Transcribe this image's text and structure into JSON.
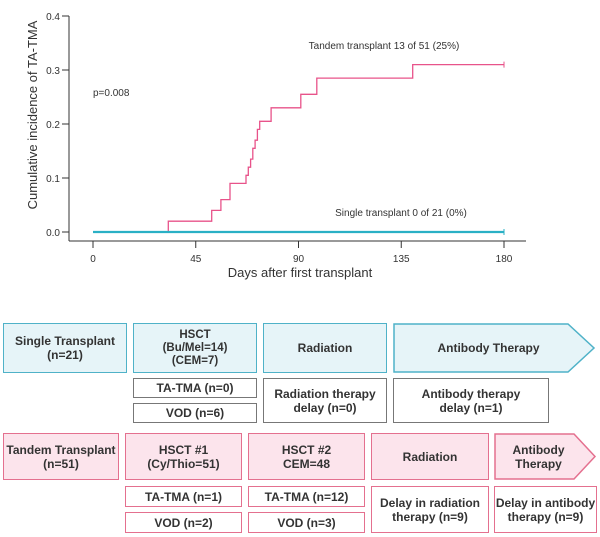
{
  "chart_data": {
    "type": "line",
    "title": "",
    "xlabel": "Days after first transplant",
    "ylabel": "Cumulative incidence of TA-TMA",
    "xlim": [
      0,
      180
    ],
    "ylim": [
      0,
      0.4
    ],
    "xticks": [
      0,
      45,
      90,
      135,
      180
    ],
    "yticks": [
      0.0,
      0.1,
      0.2,
      0.3,
      0.4
    ],
    "xtick_labels": [
      "0",
      "45",
      "90",
      "135",
      "180"
    ],
    "ytick_labels": [
      "0.0",
      "0.1",
      "0.2",
      "0.3",
      "0.4"
    ],
    "p_value_label": "p=0.008",
    "series": [
      {
        "name": "Tandem transplant 13 of 51 (25%)",
        "color": "#e8538a",
        "step": true,
        "points": [
          [
            0,
            0
          ],
          [
            33,
            0
          ],
          [
            33,
            0.02
          ],
          [
            52,
            0.02
          ],
          [
            52,
            0.04
          ],
          [
            56,
            0.04
          ],
          [
            56,
            0.06
          ],
          [
            60,
            0.06
          ],
          [
            60,
            0.09
          ],
          [
            67,
            0.09
          ],
          [
            67,
            0.105
          ],
          [
            68,
            0.105
          ],
          [
            68,
            0.12
          ],
          [
            69,
            0.12
          ],
          [
            69,
            0.135
          ],
          [
            70,
            0.135
          ],
          [
            70,
            0.155
          ],
          [
            71,
            0.155
          ],
          [
            71,
            0.17
          ],
          [
            72,
            0.17
          ],
          [
            72,
            0.19
          ],
          [
            73,
            0.19
          ],
          [
            73,
            0.205
          ],
          [
            78,
            0.205
          ],
          [
            78,
            0.23
          ],
          [
            91,
            0.23
          ],
          [
            91,
            0.255
          ],
          [
            98,
            0.255
          ],
          [
            98,
            0.285
          ],
          [
            140,
            0.285
          ],
          [
            140,
            0.31
          ],
          [
            180,
            0.31
          ]
        ]
      },
      {
        "name": "Single transplant 0 of 21 (0%)",
        "color": "#2ab0c5",
        "step": true,
        "points": [
          [
            0,
            0
          ],
          [
            33,
            0
          ],
          [
            180,
            0
          ]
        ]
      }
    ]
  },
  "flow": {
    "single": {
      "label": "Single Transplant\n(n=21)",
      "hsct": "HSCT\n(Bu/Mel=14)\n(CEM=7)",
      "radiation": "Radiation",
      "antibody": "Antibody Therapy",
      "tatma": "TA-TMA (n=0)",
      "vod": "VOD (n=6)",
      "rad_delay": "Radiation therapy\ndelay (n=0)",
      "ab_delay": "Antibody therapy\ndelay (n=1)"
    },
    "tandem": {
      "label": "Tandem Transplant\n(n=51)",
      "hsct1": "HSCT #1\n(Cy/Thio=51)",
      "hsct2": "HSCT #2\nCEM=48",
      "radiation": "Radiation",
      "antibody": "Antibody\nTherapy",
      "tatma1": "TA-TMA (n=1)",
      "vod1": "VOD (n=2)",
      "tatma2": "TA-TMA (n=12)",
      "vod2": "VOD (n=3)",
      "rad_delay": "Delay in radiation\ntherapy (n=9)",
      "ab_delay": "Delay in antibody\ntherapy (n=9)"
    }
  }
}
